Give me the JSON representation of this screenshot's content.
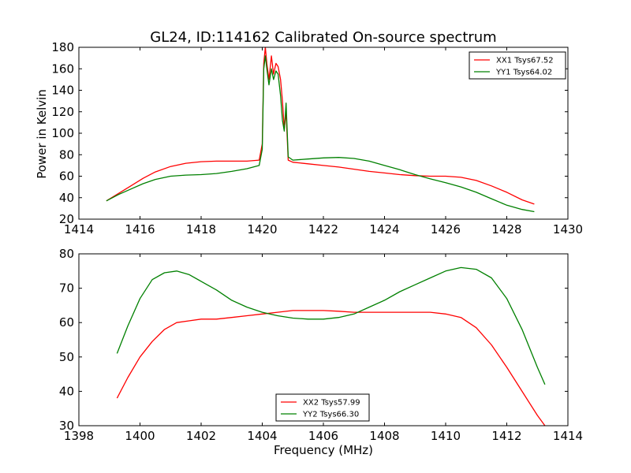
{
  "figure": {
    "title": "GL24, ID:114162 Calibrated On-source spectrum",
    "xlabel": "Frequency (MHz)",
    "ylabel": "Power in Kelvin"
  },
  "colors": {
    "red": "#ff0000",
    "green": "#008000"
  },
  "chart_data": [
    {
      "type": "line",
      "xlim": [
        1414,
        1430
      ],
      "ylim": [
        20,
        180
      ],
      "xticks": [
        1414,
        1416,
        1418,
        1420,
        1422,
        1424,
        1426,
        1428,
        1430
      ],
      "yticks": [
        20,
        40,
        60,
        80,
        100,
        120,
        140,
        160,
        180
      ],
      "ylabel": "Power in Kelvin",
      "grid": false,
      "legend_position": "top-right",
      "series": [
        {
          "name": "XX1 Tsys67.52",
          "color": "#ff0000",
          "x": [
            1414.9,
            1415.3,
            1415.7,
            1416.1,
            1416.5,
            1417.0,
            1417.5,
            1418.0,
            1418.5,
            1419.0,
            1419.5,
            1419.9,
            1420.0,
            1420.05,
            1420.1,
            1420.15,
            1420.22,
            1420.3,
            1420.37,
            1420.45,
            1420.52,
            1420.6,
            1420.66,
            1420.72,
            1420.78,
            1420.85,
            1421.0,
            1421.5,
            1422.0,
            1422.5,
            1423.0,
            1423.5,
            1424.0,
            1424.5,
            1425.0,
            1425.5,
            1426.0,
            1426.5,
            1427.0,
            1427.5,
            1428.0,
            1428.5,
            1428.9
          ],
          "y": [
            37,
            44,
            51,
            58,
            64,
            69,
            72,
            73.5,
            74,
            74,
            74,
            75,
            90,
            165,
            180,
            165,
            150,
            172,
            155,
            165,
            162,
            150,
            130,
            104,
            120,
            75,
            73,
            71.5,
            70,
            68.5,
            66.5,
            64.5,
            63,
            61.5,
            60.5,
            60,
            60,
            59,
            56,
            51,
            45,
            38,
            34
          ]
        },
        {
          "name": "YY1 Tsys64.02",
          "color": "#008000",
          "x": [
            1414.9,
            1415.3,
            1415.7,
            1416.1,
            1416.5,
            1417.0,
            1417.5,
            1418.0,
            1418.5,
            1419.0,
            1419.5,
            1419.9,
            1420.0,
            1420.05,
            1420.1,
            1420.15,
            1420.22,
            1420.3,
            1420.37,
            1420.45,
            1420.52,
            1420.6,
            1420.66,
            1420.72,
            1420.78,
            1420.85,
            1421.0,
            1421.5,
            1422.0,
            1422.5,
            1423.0,
            1423.5,
            1424.0,
            1424.5,
            1425.0,
            1425.5,
            1426.0,
            1426.5,
            1427.0,
            1427.5,
            1428.0,
            1428.5,
            1428.9
          ],
          "y": [
            37,
            43,
            48,
            53,
            57,
            60,
            61,
            61.5,
            62.5,
            64.5,
            67,
            70,
            85,
            160,
            172,
            160,
            145,
            160,
            150,
            158,
            155,
            135,
            112,
            102,
            128,
            78,
            75,
            76,
            77,
            77.5,
            76.5,
            74,
            70,
            66,
            61.5,
            57.5,
            54,
            50,
            45,
            39,
            33,
            29,
            27
          ]
        }
      ]
    },
    {
      "type": "line",
      "xlim": [
        1398,
        1414
      ],
      "ylim": [
        30,
        80
      ],
      "xticks": [
        1398,
        1400,
        1402,
        1404,
        1406,
        1408,
        1410,
        1412,
        1414
      ],
      "yticks": [
        30,
        40,
        50,
        60,
        70,
        80
      ],
      "xlabel": "Frequency (MHz)",
      "grid": false,
      "legend_position": "bottom-center",
      "series": [
        {
          "name": "XX2 Tsys57.99",
          "color": "#ff0000",
          "x": [
            1399.25,
            1399.6,
            1400.0,
            1400.4,
            1400.8,
            1401.2,
            1401.6,
            1402.0,
            1402.5,
            1403.0,
            1403.5,
            1404.0,
            1404.5,
            1405.0,
            1405.5,
            1406.0,
            1406.5,
            1407.0,
            1407.5,
            1408.0,
            1408.5,
            1409.0,
            1409.5,
            1410.0,
            1410.5,
            1411.0,
            1411.5,
            1412.0,
            1412.5,
            1413.0,
            1413.25
          ],
          "y": [
            38,
            44,
            50,
            54.5,
            58,
            60,
            60.5,
            61,
            61,
            61.5,
            62,
            62.5,
            63,
            63.5,
            63.5,
            63.5,
            63.3,
            63,
            63,
            63,
            63,
            63,
            63,
            62.5,
            61.5,
            58.5,
            53.5,
            47,
            40,
            33,
            30
          ]
        },
        {
          "name": "YY2 Tsys66.30",
          "color": "#008000",
          "x": [
            1399.25,
            1399.6,
            1400.0,
            1400.4,
            1400.8,
            1401.2,
            1401.6,
            1402.0,
            1402.5,
            1403.0,
            1403.5,
            1404.0,
            1404.5,
            1405.0,
            1405.5,
            1406.0,
            1406.5,
            1407.0,
            1407.5,
            1408.0,
            1408.5,
            1409.0,
            1409.5,
            1410.0,
            1410.5,
            1411.0,
            1411.5,
            1412.0,
            1412.5,
            1413.0,
            1413.25
          ],
          "y": [
            51,
            59,
            67,
            72.5,
            74.5,
            75,
            74,
            72,
            69.5,
            66.5,
            64.5,
            63,
            62,
            61.3,
            61,
            61,
            61.5,
            62.5,
            64.5,
            66.5,
            69,
            71,
            73,
            75,
            76,
            75.5,
            73,
            67,
            58,
            47,
            42
          ]
        }
      ]
    }
  ]
}
